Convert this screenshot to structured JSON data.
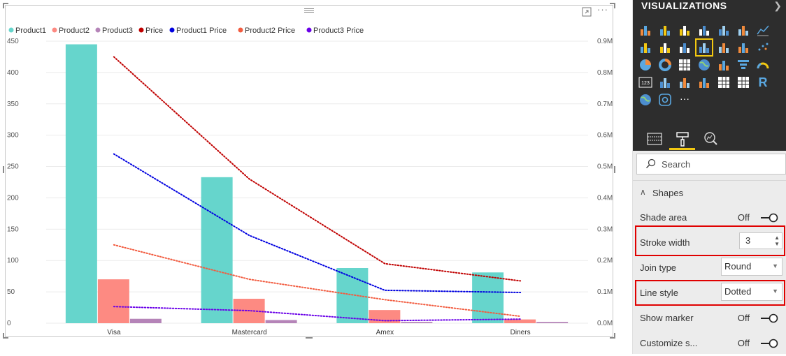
{
  "chart_data": {
    "type": "bar",
    "categories": [
      "Visa",
      "Mastercard",
      "Amex",
      "Diners"
    ],
    "legend": [
      {
        "name": "Product1",
        "color": "#66d5cc"
      },
      {
        "name": "Product2",
        "color": "#fd8a82"
      },
      {
        "name": "Product3",
        "color": "#b584b8"
      },
      {
        "name": "Price",
        "color": "#c00000"
      },
      {
        "name": "Product1 Price",
        "color": "#0000e0"
      },
      {
        "name": "Product2 Price",
        "color": "#f25c40"
      },
      {
        "name": "Product3 Price",
        "color": "#6a00e8"
      }
    ],
    "bar_series": [
      {
        "name": "Product1",
        "color": "#66d5cc",
        "values": [
          445,
          233,
          88,
          81
        ]
      },
      {
        "name": "Product2",
        "color": "#fd8a82",
        "values": [
          70,
          39,
          21,
          6
        ]
      },
      {
        "name": "Product3",
        "color": "#b584b8",
        "values": [
          7,
          5,
          2,
          2
        ]
      }
    ],
    "line_series": [
      {
        "name": "Price",
        "color": "#c00000",
        "values": [
          0.85,
          0.46,
          0.19,
          0.135
        ]
      },
      {
        "name": "Product1 Price",
        "color": "#0000e0",
        "values": [
          0.54,
          0.28,
          0.105,
          0.098
        ]
      },
      {
        "name": "Product2 Price",
        "color": "#f25c40",
        "values": [
          0.25,
          0.14,
          0.075,
          0.022
        ]
      },
      {
        "name": "Product3 Price",
        "color": "#6a00e8",
        "values": [
          0.053,
          0.04,
          0.008,
          0.013
        ]
      }
    ],
    "y_left": {
      "min": 0,
      "max": 450,
      "ticks": [
        "0",
        "50",
        "100",
        "150",
        "200",
        "250",
        "300",
        "350",
        "400",
        "450"
      ]
    },
    "y_right": {
      "min": 0,
      "max": 0.9,
      "ticks": [
        "0.0M",
        "0.1M",
        "0.2M",
        "0.3M",
        "0.4M",
        "0.5M",
        "0.6M",
        "0.7M",
        "0.8M",
        "0.9M"
      ]
    },
    "line_style": "dotted",
    "grid": true,
    "legend_position": "top-left"
  },
  "pane": {
    "title": "VISUALIZATIONS",
    "search_placeholder": "Search",
    "section_label": "Shapes",
    "shade_area_label": "Shade area",
    "shade_area_value": "Off",
    "stroke_width_label": "Stroke width",
    "stroke_width_value": "3",
    "join_type_label": "Join type",
    "join_type_value": "Round",
    "line_style_label": "Line style",
    "line_style_value": "Dotted",
    "show_marker_label": "Show marker",
    "show_marker_value": "Off",
    "customize_label": "Customize s...",
    "customize_value": "Off",
    "more_label": "···",
    "r_label": "R",
    "table_label": "123"
  },
  "colors": {
    "accent": "#f2c811",
    "highlight": "#e00000",
    "pane_dark": "#2d2d2d"
  }
}
